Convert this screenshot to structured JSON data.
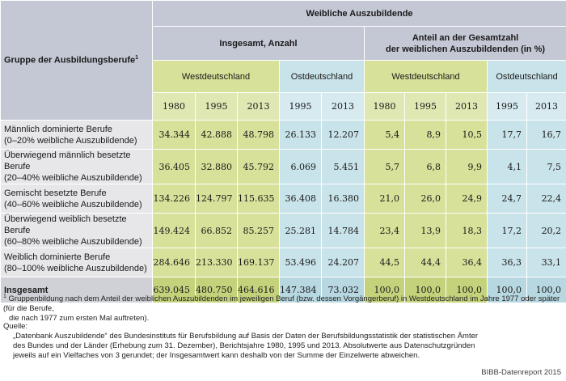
{
  "header": {
    "group_label": "Gruppe der Ausbildungsberufe",
    "group_sup": "1",
    "main": "Weibliche Auszubildende",
    "total_count": "Insgesamt, Anzahl",
    "share_line1": "Anteil an der Gesamtzahl",
    "share_line2": "der weiblichen Auszubildenden (in %)",
    "west": "Westdeutschland",
    "east": "Ostdeutschland",
    "years_west": [
      "1980",
      "1995",
      "2013"
    ],
    "years_east": [
      "1995",
      "2013"
    ]
  },
  "rows": [
    {
      "label1": "Männlich dominierte Berufe",
      "label2": "(0–20% weibliche Auszubildende)",
      "w": [
        "34.344",
        "42.888",
        "48.798"
      ],
      "e": [
        "26.133",
        "12.207"
      ],
      "pw": [
        "5,4",
        "8,9",
        "10,5"
      ],
      "pe": [
        "17,7",
        "16,7"
      ]
    },
    {
      "label1": "Überwiegend männlich besetzte Berufe",
      "label2": "(20–40% weibliche Auszubildende)",
      "w": [
        "36.405",
        "32.880",
        "45.792"
      ],
      "e": [
        "6.069",
        "5.451"
      ],
      "pw": [
        "5,7",
        "6,8",
        "9,9"
      ],
      "pe": [
        "4,1",
        "7,5"
      ]
    },
    {
      "label1": "Gemischt besetzte Berufe",
      "label2": "(40–60% weibliche Auszubildende)",
      "w": [
        "134.226",
        "124.797",
        "115.635"
      ],
      "e": [
        "36.408",
        "16.380"
      ],
      "pw": [
        "21,0",
        "26,0",
        "24,9"
      ],
      "pe": [
        "24,7",
        "22,4"
      ]
    },
    {
      "label1": "Überwiegend weiblich besetzte Berufe",
      "label2": "(60–80% weibliche Auszubildende)",
      "w": [
        "149.424",
        "66.852",
        "85.257"
      ],
      "e": [
        "25.281",
        "14.784"
      ],
      "pw": [
        "23,4",
        "13,9",
        "18,3"
      ],
      "pe": [
        "17,2",
        "20,2"
      ]
    },
    {
      "label1": "Weiblich dominierte Berufe",
      "label2": "(80–100% weibliche Auszubildende)",
      "w": [
        "284.646",
        "213.330",
        "169.137"
      ],
      "e": [
        "53.496",
        "24.207"
      ],
      "pw": [
        "44,5",
        "44,4",
        "36,4"
      ],
      "pe": [
        "36,3",
        "33,1"
      ]
    }
  ],
  "total": {
    "label": "Insgesamt",
    "w": [
      "639.045",
      "480.750",
      "464.616"
    ],
    "e": [
      "147.384",
      "73.032"
    ],
    "pw": [
      "100,0",
      "100,0",
      "100,0"
    ],
    "pe": [
      "100,0",
      "100,0"
    ]
  },
  "footnote": {
    "sup": "1",
    "line1": "Gruppenbildung nach dem Anteil der weiblichen Auszubildenden im jeweiligen Beruf (bzw. dessen Vorgängerberuf) in Westdeutschland im Jahre 1977 oder später (für die Berufe,",
    "line2": "die nach 1977 zum ersten Mal auftreten)."
  },
  "source": {
    "label": "Quelle:",
    "lines": [
      "„Datenbank Auszubildende“ des Bundesinstituts für Berufsbildung auf Basis der Daten der Berufsbildungsstatistik der statistischen Ämter",
      "des Bundes und der Länder (Erhebung zum 31. Dezember), Berichtsjahre 1980, 1995 und 2013. Absolutwerte aus Datenschutzgründen",
      "jeweils auf ein Vielfaches von 3 gerundet; der Insgesamtwert kann deshalb von der Summe der Einzelwerte abweichen."
    ]
  },
  "credit": "BIBB-Datenreport 2015"
}
